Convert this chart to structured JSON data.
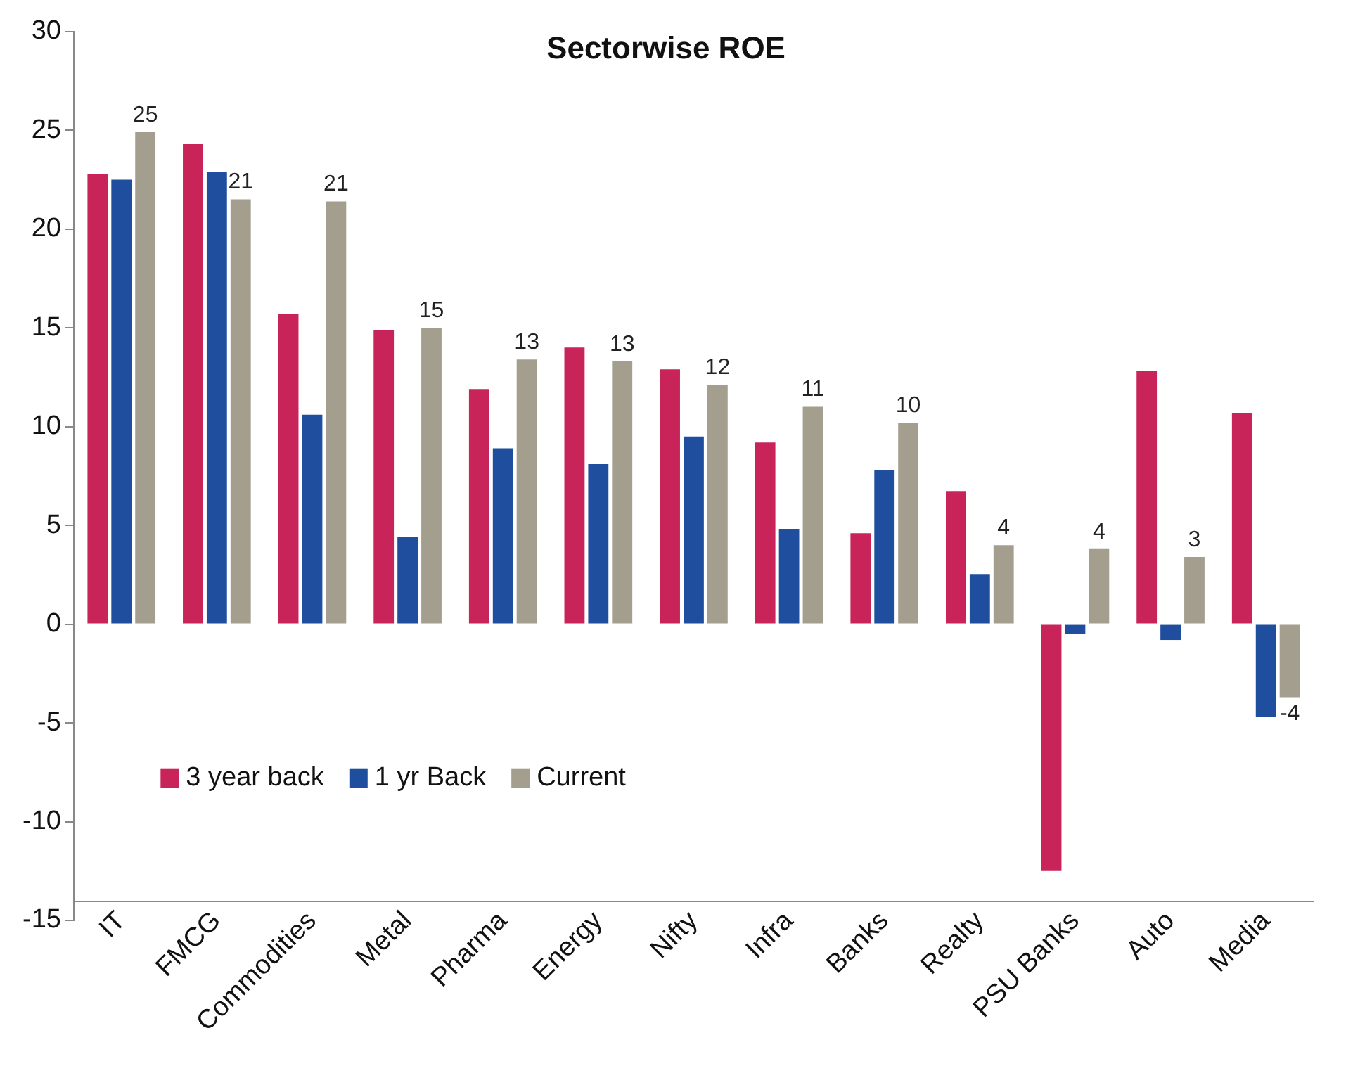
{
  "chart_data": {
    "type": "bar",
    "title": "Sectorwise ROE",
    "categories": [
      "IT",
      "FMCG",
      "Commodities",
      "Metal",
      "Pharma",
      "Energy",
      "Nifty",
      "Infra",
      "Banks",
      "Realty",
      "PSU Banks",
      "Auto",
      "Media"
    ],
    "series": [
      {
        "name": "3 year back",
        "color": "#c8245a",
        "values": [
          22.8,
          24.3,
          15.7,
          14.9,
          11.9,
          14.0,
          12.9,
          9.2,
          4.6,
          6.7,
          -12.5,
          12.8,
          10.7
        ]
      },
      {
        "name": "1 yr Back",
        "color": "#1f4e9e",
        "values": [
          22.5,
          22.9,
          10.6,
          4.4,
          8.9,
          8.1,
          9.5,
          4.8,
          7.8,
          2.5,
          -0.5,
          -0.8,
          -4.7
        ]
      },
      {
        "name": "Current",
        "color": "#a39e8e",
        "values": [
          24.9,
          21.5,
          21.4,
          15.0,
          13.4,
          13.3,
          12.1,
          11.0,
          10.2,
          4.0,
          3.8,
          3.4,
          -3.7
        ],
        "value_labels": [
          "25",
          "21",
          "21",
          "15",
          "13",
          "13",
          "12",
          "11",
          "10",
          "4",
          "4",
          "3",
          "-4"
        ]
      }
    ],
    "ylim": [
      -15,
      30
    ],
    "yticks": [
      -15,
      -10,
      -5,
      0,
      5,
      10,
      15,
      20,
      25,
      30
    ],
    "grid": false,
    "legend": "bottom left"
  }
}
